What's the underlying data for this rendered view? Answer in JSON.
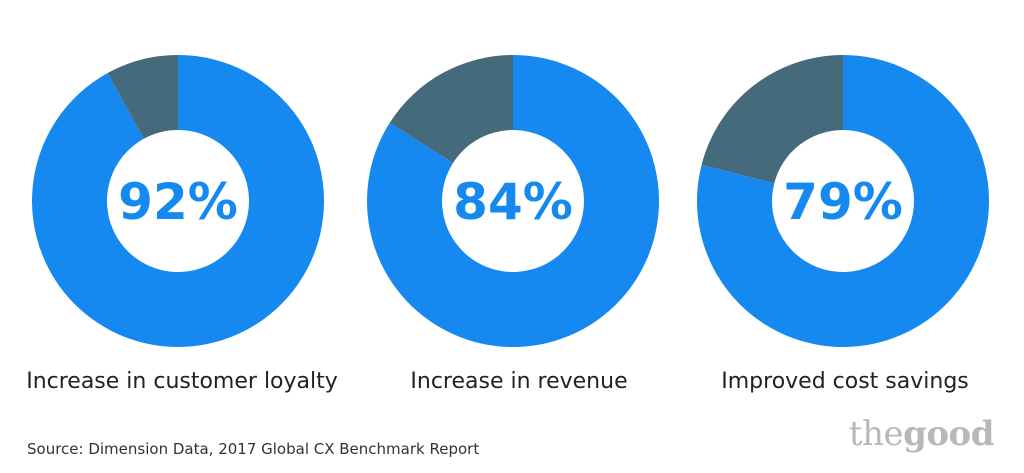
{
  "chart_data": [
    {
      "type": "pie",
      "style": "donut",
      "value": 92,
      "remainder": 8,
      "center_label": "92%",
      "label": "Increase in customer loyalty"
    },
    {
      "type": "pie",
      "style": "donut",
      "value": 84,
      "remainder": 16,
      "center_label": "84%",
      "label": "Increase in revenue"
    },
    {
      "type": "pie",
      "style": "donut",
      "value": 79,
      "remainder": 21,
      "center_label": "79%",
      "label": "Improved cost savings"
    }
  ],
  "colors": {
    "value_slice": "#1589f0",
    "remainder_slice": "#456a7b",
    "center_text": "#1589f0"
  },
  "source_text": "Source: Dimension Data, 2017 Global CX Benchmark Report",
  "logo": {
    "word1": "the",
    "word2": "good"
  }
}
